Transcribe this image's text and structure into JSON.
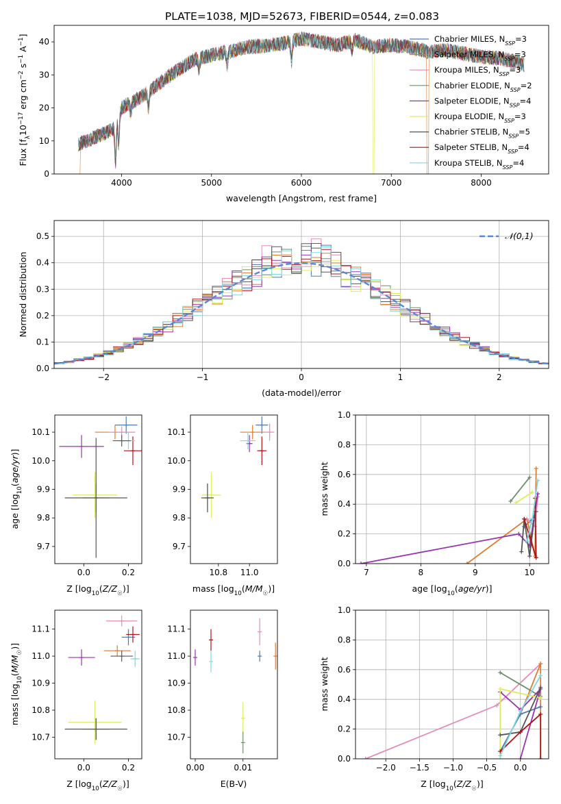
{
  "title": "PLATE=1038, MJD=52673, FIBERID=0544, z=0.083",
  "colors": {
    "chabrier_miles": "#4a7ab0",
    "salpeter_miles": "#e07b2a",
    "kroupa_miles": "#e58ab9",
    "chabrier_elodie": "#6b8f6b",
    "salpeter_elodie": "#9a31b2",
    "kroupa_elodie": "#d9ef5a",
    "chabrier_stelib": "#555555",
    "salpeter_stelib": "#b01212",
    "kroupa_stelib": "#7fd8e0",
    "normal": "#5b86d6"
  },
  "chart_data": [
    {
      "type": "line",
      "panel": "spectrum",
      "xlabel": "wavelength [Angstrom, rest frame]",
      "ylabel": "Flux [f_λ10^-17 erg cm^-2 s^-1 A^-1]",
      "xlim": [
        3250,
        8750
      ],
      "ylim": [
        0,
        45
      ],
      "xticks": [
        4000,
        5000,
        6000,
        7000,
        8000
      ],
      "yticks": [
        0,
        10,
        20,
        30,
        40
      ],
      "legend_position": "top-right",
      "series": [
        {
          "name": "Chabrier MILES, N_SSP=3"
        },
        {
          "name": "Salpeter MILES, N_SSP=3"
        },
        {
          "name": "Kroupa MILES, N_SSP=3"
        },
        {
          "name": "Chabrier ELODIE, N_SSP=2"
        },
        {
          "name": "Salpeter ELODIE, N_SSP=4"
        },
        {
          "name": "Kroupa ELODIE, N_SSP=3"
        },
        {
          "name": "Chabrier STELIB, N_SSP=5"
        },
        {
          "name": "Salpeter STELIB, N_SSP=4"
        },
        {
          "name": "Kroupa STELIB, N_SSP=4"
        }
      ],
      "continuum": {
        "x": [
          3520,
          3700,
          3900,
          4000,
          4200,
          4400,
          4600,
          4800,
          5000,
          5200,
          5400,
          5600,
          5800,
          6000,
          6200,
          6400,
          6600,
          6800,
          7000,
          7200,
          7400,
          7600,
          7800,
          8000,
          8200,
          8400,
          8480
        ],
        "y": [
          9,
          11,
          13.5,
          20,
          23,
          27,
          31,
          34.5,
          36,
          37,
          38.5,
          38.8,
          39.5,
          41,
          40,
          39,
          40.5,
          38.5,
          39,
          38.5,
          37,
          37.5,
          36.5,
          35.5,
          35,
          34,
          33
        ]
      }
    },
    {
      "type": "bar",
      "panel": "residuals",
      "xlabel": "(data-model)/error",
      "ylabel": "Normed distribution",
      "xlim": [
        -2.5,
        2.5
      ],
      "ylim": [
        0,
        0.56
      ],
      "xticks": [
        -2,
        -1,
        0,
        1,
        2
      ],
      "yticks": [
        0.0,
        0.1,
        0.2,
        0.3,
        0.4,
        0.5
      ],
      "legend": "𝒩(0,1)",
      "legend_position": "top-right",
      "bin_width": 0.1
    },
    {
      "type": "scatter",
      "panel": "age_vs_Z",
      "xlabel": "Z [log10(Z/Z☉)]",
      "ylabel": "age [log10(age/yr)]",
      "xlim": [
        -0.13,
        0.26
      ],
      "ylim": [
        9.64,
        10.16
      ],
      "xticks": [
        0.0,
        0.2
      ],
      "yticks": [
        9.7,
        9.8,
        9.9,
        10.0,
        10.1
      ],
      "points": [
        {
          "series": "chabrier_miles",
          "x": 0.19,
          "y": 10.125,
          "xerr": 0.05,
          "yerr": 0.03
        },
        {
          "series": "salpeter_miles",
          "x": 0.14,
          "y": 10.1,
          "xerr": 0.09,
          "yerr": 0.025
        },
        {
          "series": "kroupa_miles",
          "x": 0.17,
          "y": 10.1,
          "xerr": 0.06,
          "yerr": 0.02
        },
        {
          "series": "chabrier_elodie",
          "x": 0.055,
          "y": 9.87,
          "xerr": 0.06,
          "yerr": 0.05
        },
        {
          "series": "salpeter_elodie",
          "x": -0.01,
          "y": 10.05,
          "xerr": 0.1,
          "yerr": 0.04
        },
        {
          "series": "kroupa_elodie",
          "x": 0.05,
          "y": 9.88,
          "xerr": 0.1,
          "yerr": 0.08
        },
        {
          "series": "chabrier_stelib",
          "x": 0.055,
          "y": 9.87,
          "xerr": 0.14,
          "yerr": 0.21
        },
        {
          "series": "salpeter_stelib",
          "x": 0.22,
          "y": 10.035,
          "xerr": 0.04,
          "yerr": 0.05
        },
        {
          "series": "kroupa_stelib",
          "x": 0.2,
          "y": 10.07,
          "xerr": 0.03,
          "yerr": 0.03
        },
        {
          "series": "chabrier_stelib",
          "x": 0.17,
          "y": 10.07,
          "xerr": 0.04,
          "yerr": 0.02
        }
      ]
    },
    {
      "type": "scatter",
      "panel": "age_vs_mass",
      "xlabel": "mass [log10(M/M☉)]",
      "ylabel": "",
      "xlim": [
        10.62,
        11.18
      ],
      "ylim": [
        9.64,
        10.16
      ],
      "xticks": [
        10.8,
        11.0
      ],
      "yticks": [
        9.7,
        9.8,
        9.9,
        10.0,
        10.1
      ],
      "points": [
        {
          "series": "chabrier_miles",
          "x": 11.08,
          "y": 10.125,
          "xerr": 0.04,
          "yerr": 0.03
        },
        {
          "series": "salpeter_miles",
          "x": 11.02,
          "y": 10.1,
          "xerr": 0.08,
          "yerr": 0.025
        },
        {
          "series": "kroupa_miles",
          "x": 11.13,
          "y": 10.1,
          "xerr": 0.03,
          "yerr": 0.03
        },
        {
          "series": "chabrier_elodie",
          "x": 10.73,
          "y": 9.87,
          "xerr": 0.02,
          "yerr": 0.05
        },
        {
          "series": "salpeter_elodie",
          "x": 11.0,
          "y": 10.06,
          "xerr": 0.02,
          "yerr": 0.03
        },
        {
          "series": "kroupa_elodie",
          "x": 10.755,
          "y": 9.88,
          "xerr": 0.06,
          "yerr": 0.08
        },
        {
          "series": "chabrier_stelib",
          "x": 10.73,
          "y": 9.87,
          "xerr": 0.04,
          "yerr": 0.05
        },
        {
          "series": "salpeter_stelib",
          "x": 11.08,
          "y": 10.035,
          "xerr": 0.03,
          "yerr": 0.05
        },
        {
          "series": "kroupa_stelib",
          "x": 10.99,
          "y": 10.07,
          "xerr": 0.05,
          "yerr": 0.03
        }
      ]
    },
    {
      "type": "line",
      "panel": "mass_weight_vs_age",
      "xlabel": "age [log10(age/yr)]",
      "ylabel": "mass weight",
      "xlim": [
        6.8,
        10.35
      ],
      "ylim": [
        0,
        1.0
      ],
      "xticks": [
        7,
        8,
        9,
        10
      ],
      "yticks": [
        0.0,
        0.2,
        0.4,
        0.6,
        0.8,
        1.0
      ],
      "series": [
        {
          "key": "chabrier_miles",
          "x": [
            9.9,
            10.05,
            10.12
          ],
          "y": [
            0.25,
            0.3,
            0.35
          ]
        },
        {
          "key": "salpeter_miles",
          "x": [
            8.85,
            9.95,
            10.1,
            10.12
          ],
          "y": [
            0.0,
            0.3,
            0.05,
            0.64
          ]
        },
        {
          "key": "kroupa_miles",
          "x": [
            9.95,
            10.1,
            10.15
          ],
          "y": [
            0.3,
            0.25,
            0.45
          ]
        },
        {
          "key": "chabrier_elodie",
          "x": [
            9.65,
            10.0
          ],
          "y": [
            0.42,
            0.58
          ]
        },
        {
          "key": "salpeter_elodie",
          "x": [
            6.9,
            9.8,
            10.0,
            10.15
          ],
          "y": [
            0.0,
            0.2,
            0.12,
            0.47
          ]
        },
        {
          "key": "kroupa_elodie",
          "x": [
            9.75,
            10.05
          ],
          "y": [
            0.41,
            0.48
          ]
        },
        {
          "key": "chabrier_stelib",
          "x": [
            9.85,
            9.9,
            10.0,
            10.1
          ],
          "y": [
            0.08,
            0.3,
            0.05,
            0.35
          ]
        },
        {
          "key": "salpeter_stelib",
          "x": [
            9.9,
            10.0,
            10.12,
            10.1
          ],
          "y": [
            0.3,
            0.18,
            0.04,
            0.44
          ]
        },
        {
          "key": "kroupa_stelib",
          "x": [
            9.95,
            10.05,
            10.15
          ],
          "y": [
            0.15,
            0.3,
            0.56
          ]
        }
      ]
    },
    {
      "type": "scatter",
      "panel": "mass_vs_Z",
      "xlabel": "Z [log10(Z/Z☉)]",
      "ylabel": "mass [log10(M/M☉)]",
      "xlim": [
        -0.13,
        0.26
      ],
      "ylim": [
        10.62,
        11.17
      ],
      "xticks": [
        0.0,
        0.2
      ],
      "yticks": [
        10.7,
        10.8,
        10.9,
        11.0,
        11.1
      ],
      "points": [
        {
          "series": "chabrier_miles",
          "x": 0.2,
          "y": 11.07,
          "xerr": 0.03,
          "yerr": 0.03
        },
        {
          "series": "salpeter_miles",
          "x": 0.15,
          "y": 11.02,
          "xerr": 0.06,
          "yerr": 0.02
        },
        {
          "series": "kroupa_miles",
          "x": 0.17,
          "y": 11.13,
          "xerr": 0.07,
          "yerr": 0.02
        },
        {
          "series": "chabrier_elodie",
          "x": 0.055,
          "y": 10.73,
          "xerr": 0.06,
          "yerr": 0.04
        },
        {
          "series": "salpeter_elodie",
          "x": -0.01,
          "y": 10.995,
          "xerr": 0.06,
          "yerr": 0.03
        },
        {
          "series": "kroupa_elodie",
          "x": 0.05,
          "y": 10.755,
          "xerr": 0.12,
          "yerr": 0.08
        },
        {
          "series": "chabrier_stelib",
          "x": 0.055,
          "y": 10.73,
          "xerr": 0.14,
          "yerr": 0.04
        },
        {
          "series": "salpeter_stelib",
          "x": 0.22,
          "y": 11.08,
          "xerr": 0.03,
          "yerr": 0.03
        },
        {
          "series": "kroupa_stelib",
          "x": 0.23,
          "y": 10.99,
          "xerr": 0.02,
          "yerr": 0.03
        },
        {
          "series": "chabrier_stelib",
          "x": 0.17,
          "y": 11.0,
          "xerr": 0.05,
          "yerr": 0.02
        }
      ]
    },
    {
      "type": "scatter",
      "panel": "mass_vs_ebv",
      "xlabel": "E(B-V)",
      "ylabel": "",
      "xlim": [
        -0.001,
        0.0172
      ],
      "ylim": [
        10.62,
        11.17
      ],
      "xticks": [
        0.0,
        0.01
      ],
      "yticks": [
        10.7,
        10.8,
        10.9,
        11.0,
        11.1
      ],
      "points": [
        {
          "series": "salpeter_elodie",
          "x": 0.0,
          "y": 10.995,
          "xerr": 0,
          "yerr": 0.03
        },
        {
          "series": "salpeter_stelib",
          "x": 0.0033,
          "y": 11.06,
          "xerr": 0,
          "yerr": 0.04
        },
        {
          "series": "kroupa_stelib",
          "x": 0.0033,
          "y": 10.98,
          "xerr": 0,
          "yerr": 0.04
        },
        {
          "series": "kroupa_elodie",
          "x": 0.01,
          "y": 10.77,
          "xerr": 0,
          "yerr": 0.06
        },
        {
          "series": "chabrier_elodie",
          "x": 0.01,
          "y": 10.68,
          "xerr": 0,
          "yerr": 0.04
        },
        {
          "series": "kroupa_miles",
          "x": 0.0135,
          "y": 11.09,
          "xerr": 0,
          "yerr": 0.05
        },
        {
          "series": "chabrier_miles",
          "x": 0.0135,
          "y": 11.0,
          "xerr": 0,
          "yerr": 0.02
        },
        {
          "series": "salpeter_miles",
          "x": 0.0168,
          "y": 11.0,
          "xerr": 0,
          "yerr": 0.05
        }
      ]
    },
    {
      "type": "line",
      "panel": "mass_weight_vs_Z",
      "xlabel": "Z [log10(Z/Z☉)]",
      "ylabel": "mass weight",
      "xlim": [
        -2.45,
        0.42
      ],
      "ylim": [
        0,
        1.0
      ],
      "xticks": [
        -2.0,
        -1.5,
        -1.0,
        -0.5,
        0.0
      ],
      "yticks": [
        0.0,
        0.2,
        0.4,
        0.6,
        0.8,
        1.0
      ],
      "series": [
        {
          "key": "kroupa_miles",
          "x": [
            -2.3,
            -0.35,
            0.3
          ],
          "y": [
            0.0,
            0.36,
            0.64
          ]
        },
        {
          "key": "salpeter_miles",
          "x": [
            0.0,
            0.3,
            0.3
          ],
          "y": [
            0.3,
            0.64,
            0.0
          ]
        },
        {
          "key": "chabrier_miles",
          "x": [
            -0.3,
            0.0,
            0.3
          ],
          "y": [
            0.05,
            0.3,
            0.35
          ]
        },
        {
          "key": "chabrier_elodie",
          "x": [
            -0.3,
            0.3
          ],
          "y": [
            0.58,
            0.42
          ]
        },
        {
          "key": "salpeter_elodie",
          "x": [
            -0.3,
            0.0,
            0.3,
            0.0
          ],
          "y": [
            0.45,
            0.33,
            0.47,
            0.0
          ]
        },
        {
          "key": "kroupa_elodie",
          "x": [
            -0.3,
            -0.3,
            0.3
          ],
          "y": [
            0.0,
            0.47,
            0.41
          ]
        },
        {
          "key": "chabrier_stelib",
          "x": [
            -0.3,
            0.0,
            0.3
          ],
          "y": [
            0.16,
            0.18,
            0.48
          ]
        },
        {
          "key": "salpeter_stelib",
          "x": [
            -0.3,
            0.0,
            0.3,
            0.3
          ],
          "y": [
            0.05,
            0.18,
            0.3,
            0.0
          ]
        },
        {
          "key": "kroupa_stelib",
          "x": [
            -0.3,
            0.0,
            0.3
          ],
          "y": [
            0.02,
            0.32,
            0.56
          ]
        }
      ]
    }
  ]
}
